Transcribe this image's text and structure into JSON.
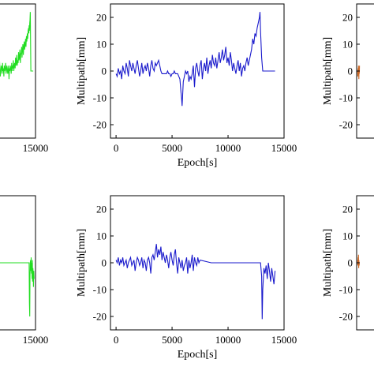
{
  "chart_data": [
    {
      "id": "top-left",
      "type": "line",
      "color": "#22dd22",
      "xlim": [
        0,
        15000
      ],
      "ylim": [
        -25,
        25
      ],
      "xticks": [
        15000
      ],
      "yticks": [],
      "xtick_labels": [
        "15000"
      ],
      "ytick_labels": [],
      "xlabel": "",
      "ylabel": "",
      "x": [
        0,
        150,
        300,
        450,
        600,
        750,
        900,
        1050,
        1200,
        1350,
        1500,
        1650,
        1800,
        1950,
        2100,
        2250,
        2400,
        2550,
        2700,
        2850,
        3000,
        3150,
        3300,
        3450,
        3600,
        3750,
        3900,
        4050,
        4200,
        4350,
        4500,
        4650,
        4800,
        4950,
        5100,
        5250,
        5400,
        5550,
        5700,
        5850,
        6000,
        6150,
        6300,
        6450,
        6600,
        6750,
        6900,
        7050,
        7200,
        7350,
        7500,
        7650,
        7800,
        7950,
        8100,
        8250,
        8400,
        8550,
        8700,
        8850,
        9000,
        9150,
        9300,
        9450,
        9600,
        9750,
        9900,
        10050,
        10200,
        10350,
        10500,
        10650,
        10800,
        10950,
        11100,
        11250,
        11400,
        11550,
        11700,
        11850,
        12000,
        12150,
        12300,
        12450,
        12600,
        12700,
        12800,
        12900,
        13000,
        13100,
        13200,
        13400,
        13600,
        13800,
        14000,
        14200
      ],
      "y": [
        -1,
        0,
        -2,
        1,
        0,
        -1,
        2,
        0,
        -1,
        1,
        3,
        0,
        -2,
        1,
        2,
        -1,
        0,
        4,
        1,
        -2,
        0,
        2,
        1,
        -1,
        3,
        0,
        1,
        -2,
        2,
        0,
        1,
        3,
        -1,
        0,
        2,
        1,
        -1,
        0,
        2,
        -3,
        1,
        0,
        2,
        1,
        -1,
        3,
        0,
        2,
        1,
        4,
        0,
        2,
        3,
        1,
        5,
        2,
        3,
        6,
        2,
        4,
        3,
        7,
        4,
        5,
        8,
        3,
        6,
        7,
        9,
        5,
        8,
        10,
        6,
        9,
        11,
        8,
        10,
        12,
        9,
        13,
        11,
        14,
        12,
        15,
        16,
        14,
        17,
        15,
        18,
        19,
        22,
        0,
        0,
        0,
        0,
        0
      ]
    },
    {
      "id": "top-middle",
      "type": "line",
      "color": "#1a1acc",
      "xlim": [
        -500,
        15000
      ],
      "ylim": [
        -25,
        25
      ],
      "xticks": [
        0,
        5000,
        10000,
        15000
      ],
      "yticks": [
        -20,
        -10,
        0,
        10,
        20
      ],
      "xtick_labels": [
        "0",
        "5000",
        "10000",
        "15000"
      ],
      "ytick_labels": [
        "-20",
        "-10",
        "0",
        "10",
        "20"
      ],
      "xlabel": "Epoch[s]",
      "ylabel": "Multipath[mm]",
      "x": [
        0,
        100,
        200,
        300,
        400,
        500,
        600,
        700,
        800,
        900,
        1000,
        1100,
        1200,
        1300,
        1400,
        1500,
        1600,
        1700,
        1800,
        1900,
        2000,
        2100,
        2200,
        2300,
        2400,
        2500,
        2600,
        2700,
        2800,
        2900,
        3000,
        3100,
        3200,
        3300,
        3400,
        3500,
        3600,
        3700,
        3800,
        3900,
        4000,
        4100,
        4200,
        4300,
        4400,
        4500,
        4600,
        4700,
        4800,
        4900,
        5000,
        5100,
        5200,
        5300,
        5400,
        5500,
        5600,
        5700,
        5800,
        5850,
        5900,
        6000,
        6100,
        6200,
        6300,
        6400,
        6500,
        6600,
        6700,
        6800,
        6900,
        7000,
        7100,
        7200,
        7300,
        7400,
        7500,
        7600,
        7700,
        7800,
        7900,
        8000,
        8100,
        8200,
        8300,
        8400,
        8500,
        8600,
        8700,
        8800,
        8900,
        9000,
        9100,
        9200,
        9300,
        9400,
        9500,
        9600,
        9700,
        9800,
        9900,
        10000,
        10100,
        10200,
        10300,
        10400,
        10500,
        10600,
        10700,
        10800,
        10900,
        11000,
        11100,
        11200,
        11300,
        11400,
        11500,
        11600,
        11700,
        11800,
        11900,
        12000,
        12100,
        12200,
        12300,
        12400,
        12500,
        12600,
        12700,
        12800,
        12850,
        12900,
        13000,
        13100,
        13200,
        13400,
        13600,
        13800,
        14000,
        14200
      ],
      "y": [
        -1,
        -2,
        1,
        -1,
        0,
        -3,
        2,
        0,
        -1,
        3,
        1,
        -2,
        4,
        2,
        0,
        3,
        1,
        -1,
        2,
        4,
        1,
        -2,
        0,
        3,
        -1,
        1,
        2,
        0,
        3,
        1,
        -2,
        2,
        4,
        1,
        0,
        3,
        2,
        3,
        4,
        2,
        0,
        -1,
        -1,
        -1,
        -1,
        -1,
        0,
        -1,
        -1,
        -2,
        -1,
        -1,
        0,
        -1,
        -1,
        -1,
        -2,
        -3,
        -8,
        -10,
        -13,
        -4,
        -2,
        0,
        -1,
        0,
        -4,
        -2,
        -3,
        -1,
        2,
        -6,
        1,
        3,
        0,
        -2,
        2,
        4,
        -3,
        1,
        3,
        0,
        5,
        -1,
        2,
        4,
        1,
        6,
        3,
        2,
        5,
        1,
        4,
        7,
        3,
        5,
        8,
        4,
        6,
        9,
        3,
        5,
        2,
        7,
        4,
        0,
        3,
        1,
        -1,
        2,
        4,
        0,
        3,
        -2,
        1,
        2,
        0,
        3,
        5,
        2,
        4,
        6,
        8,
        12,
        10,
        14,
        13,
        16,
        18,
        20,
        22,
        15,
        5,
        0,
        0,
        0,
        0,
        0,
        0,
        0
      ]
    },
    {
      "id": "top-right",
      "type": "line",
      "color": "#cc6622",
      "xlim": [
        -500,
        15000
      ],
      "ylim": [
        -25,
        25
      ],
      "xticks": [],
      "yticks": [
        -20,
        -10,
        0,
        10,
        20
      ],
      "xtick_labels": [],
      "ytick_labels": [
        "-20",
        "-10",
        "0",
        "10",
        "20"
      ],
      "xlabel": "",
      "ylabel": "Multipath[mm]",
      "x": [
        0,
        100,
        200,
        300,
        400,
        500,
        600,
        700,
        800,
        900
      ],
      "y": [
        0,
        -2,
        1,
        -1,
        2,
        0,
        -3,
        1,
        -1,
        2
      ]
    },
    {
      "id": "bottom-left",
      "type": "line",
      "color": "#22dd22",
      "xlim": [
        0,
        15000
      ],
      "ylim": [
        -25,
        25
      ],
      "xticks": [
        15000
      ],
      "yticks": [],
      "xtick_labels": [
        "15000"
      ],
      "ytick_labels": [],
      "xlabel": "",
      "ylabel": "",
      "x": [
        0,
        2000,
        4000,
        6000,
        8000,
        10000,
        12000,
        12800,
        12900,
        13000,
        13100,
        13200,
        13300,
        13400,
        13500,
        13600,
        13700,
        13800,
        13900,
        14000,
        14100,
        14200,
        14300,
        14400,
        14500
      ],
      "y": [
        0,
        0,
        0,
        0,
        0,
        0,
        0,
        0,
        -15,
        -20,
        -5,
        0,
        1,
        -3,
        2,
        -4,
        0,
        -6,
        1,
        -7,
        -2,
        -5,
        -9,
        -3,
        -6
      ]
    },
    {
      "id": "bottom-middle",
      "type": "line",
      "color": "#1a1acc",
      "xlim": [
        -500,
        15000
      ],
      "ylim": [
        -25,
        25
      ],
      "xticks": [
        0,
        5000,
        10000,
        15000
      ],
      "yticks": [
        -20,
        -10,
        0,
        10,
        20
      ],
      "xtick_labels": [
        "0",
        "5000",
        "10000",
        "15000"
      ],
      "ytick_labels": [
        "-20",
        "-10",
        "0",
        "10",
        "20"
      ],
      "xlabel": "Epoch[s]",
      "ylabel": "Multipath[mm]",
      "x": [
        0,
        100,
        200,
        300,
        400,
        500,
        600,
        700,
        800,
        900,
        1000,
        1100,
        1200,
        1300,
        1400,
        1500,
        1600,
        1700,
        1800,
        1900,
        2000,
        2100,
        2200,
        2300,
        2400,
        2500,
        2600,
        2700,
        2800,
        2900,
        3000,
        3100,
        3200,
        3300,
        3400,
        3500,
        3600,
        3700,
        3800,
        3900,
        4000,
        4100,
        4200,
        4300,
        4400,
        4500,
        4600,
        4700,
        4800,
        4900,
        5000,
        5100,
        5200,
        5300,
        5400,
        5500,
        5600,
        5700,
        5800,
        5900,
        6000,
        6100,
        6200,
        6300,
        6400,
        6500,
        6600,
        6700,
        6800,
        6900,
        7000,
        7100,
        7200,
        7300,
        7400,
        7500,
        8500,
        9500,
        10500,
        11500,
        12500,
        12900,
        13000,
        13050,
        13100,
        13200,
        13300,
        13400,
        13500,
        13600,
        13700,
        13800,
        13900,
        14000,
        14100,
        14200
      ],
      "y": [
        1,
        0,
        2,
        -1,
        1,
        0,
        2,
        -1,
        0,
        1,
        -2,
        0,
        1,
        2,
        -1,
        0,
        1,
        -3,
        0,
        2,
        1,
        -1,
        0,
        2,
        -2,
        1,
        0,
        -3,
        1,
        2,
        0,
        -4,
        2,
        3,
        1,
        4,
        7,
        2,
        5,
        3,
        6,
        1,
        4,
        2,
        0,
        3,
        1,
        -2,
        2,
        4,
        1,
        -1,
        3,
        5,
        0,
        -4,
        2,
        0,
        -2,
        1,
        -3,
        -1,
        0,
        2,
        -4,
        1,
        -2,
        0,
        3,
        -3,
        2,
        0,
        -1,
        2,
        0,
        1,
        0,
        0,
        0,
        0,
        0,
        0,
        -5,
        -21,
        -10,
        -2,
        -4,
        -1,
        -6,
        0,
        -3,
        -7,
        -2,
        -5,
        -8,
        -3
      ]
    },
    {
      "id": "bottom-right",
      "type": "line",
      "color": "#cc6622",
      "xlim": [
        -500,
        15000
      ],
      "ylim": [
        -25,
        25
      ],
      "xticks": [],
      "yticks": [
        -20,
        -10,
        0,
        10,
        20
      ],
      "xtick_labels": [],
      "ytick_labels": [
        "-20",
        "-10",
        "0",
        "10",
        "20"
      ],
      "xlabel": "",
      "ylabel": "Multipath[mm]",
      "x": [
        0,
        100,
        200,
        300,
        400,
        500,
        600,
        700,
        800
      ],
      "y": [
        1,
        -1,
        2,
        0,
        3,
        -2,
        1,
        0,
        -1
      ]
    }
  ]
}
